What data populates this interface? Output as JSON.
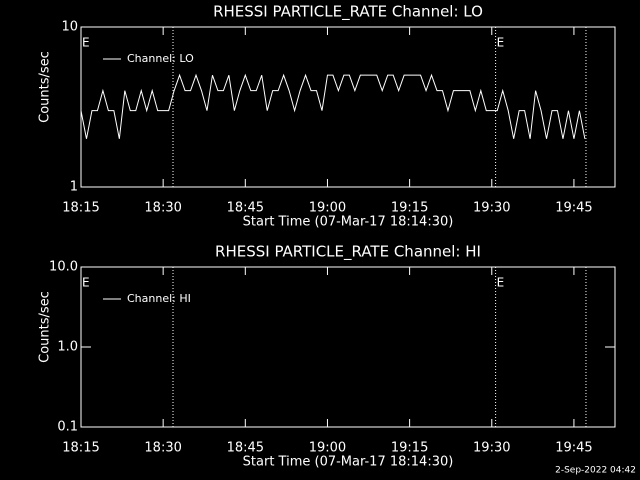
{
  "chart_data": [
    {
      "type": "line",
      "title": "RHESSI PARTICLE_RATE Channel: LO",
      "xlabel": "Start Time (07-Mar-17 18:14:30)",
      "ylabel": "Counts/sec",
      "log_y": true,
      "ylim": [
        1,
        10
      ],
      "yticks": [
        1,
        10
      ],
      "xlim": [
        15,
        112.5
      ],
      "xticks": [
        {
          "value": 15,
          "label": "18:15"
        },
        {
          "value": 30,
          "label": "18:30"
        },
        {
          "value": 45,
          "label": "18:45"
        },
        {
          "value": 60,
          "label": "19:00"
        },
        {
          "value": 75,
          "label": "19:15"
        },
        {
          "value": 90,
          "label": "19:30"
        },
        {
          "value": 105,
          "label": "19:45"
        }
      ],
      "vlines": [
        31.8,
        90.7,
        107.2
      ],
      "annotations": [
        {
          "text": "E",
          "x": 15
        },
        {
          "text": "E",
          "x": 90.7
        }
      ],
      "x": [
        15,
        16,
        17,
        18,
        19,
        20,
        21,
        22,
        23,
        24,
        25,
        26,
        27,
        28,
        29,
        30,
        31,
        32,
        33,
        34,
        35,
        36,
        37,
        38,
        39,
        40,
        41,
        42,
        43,
        44,
        45,
        46,
        47,
        48,
        49,
        50,
        51,
        52,
        53,
        54,
        55,
        56,
        57,
        58,
        59,
        60,
        61,
        62,
        63,
        64,
        65,
        66,
        67,
        68,
        69,
        70,
        71,
        72,
        73,
        74,
        75,
        76,
        77,
        78,
        79,
        80,
        81,
        82,
        83,
        84,
        85,
        86,
        87,
        88,
        89,
        90,
        91,
        92,
        93,
        94,
        95,
        96,
        97,
        98,
        99,
        100,
        101,
        102,
        103,
        104,
        105,
        106,
        107
      ],
      "series": [
        {
          "name": "Channel: LO",
          "color": "#ffffff",
          "values": [
            3,
            2,
            3,
            3,
            4,
            3,
            3,
            2,
            4,
            3,
            3,
            4,
            3,
            4,
            3,
            3,
            3,
            4,
            5,
            4,
            4,
            5,
            4,
            3,
            5,
            4,
            4,
            5,
            3,
            4,
            5,
            4,
            4,
            5,
            3,
            4,
            4,
            5,
            4,
            3,
            4,
            5,
            4,
            4,
            3,
            5,
            5,
            4,
            5,
            5,
            4,
            5,
            5,
            5,
            5,
            4,
            5,
            5,
            4,
            5,
            5,
            5,
            5,
            4,
            5,
            4,
            4,
            3,
            4,
            4,
            4,
            4,
            3,
            4,
            3,
            3,
            3,
            4,
            3,
            2,
            3,
            3,
            2,
            4,
            3,
            2,
            3,
            3,
            2,
            3,
            2,
            3,
            2
          ]
        }
      ]
    },
    {
      "type": "line",
      "title": "RHESSI PARTICLE_RATE Channel: HI",
      "xlabel": "Start Time (07-Mar-17 18:14:30)",
      "ylabel": "Counts/sec",
      "log_y": true,
      "ylim": [
        0.1,
        10
      ],
      "yticks": [
        {
          "value": 0.1,
          "label": "0.1"
        },
        {
          "value": 1,
          "label": "1.0"
        },
        {
          "value": 10,
          "label": "10.0"
        }
      ],
      "xlim": [
        15,
        112.5
      ],
      "xticks": [
        {
          "value": 15,
          "label": "18:15"
        },
        {
          "value": 30,
          "label": "18:30"
        },
        {
          "value": 45,
          "label": "18:45"
        },
        {
          "value": 60,
          "label": "19:00"
        },
        {
          "value": 75,
          "label": "19:15"
        },
        {
          "value": 90,
          "label": "19:30"
        },
        {
          "value": 105,
          "label": "19:45"
        }
      ],
      "vlines": [
        31.8,
        90.7,
        107.2
      ],
      "annotations": [
        {
          "text": "E",
          "x": 15
        },
        {
          "text": "E",
          "x": 90.7
        }
      ],
      "x": [],
      "series": [
        {
          "name": "Channel: HI",
          "color": "#ffffff",
          "values": []
        }
      ]
    }
  ],
  "footer": "2-Sep-2022 04:42"
}
